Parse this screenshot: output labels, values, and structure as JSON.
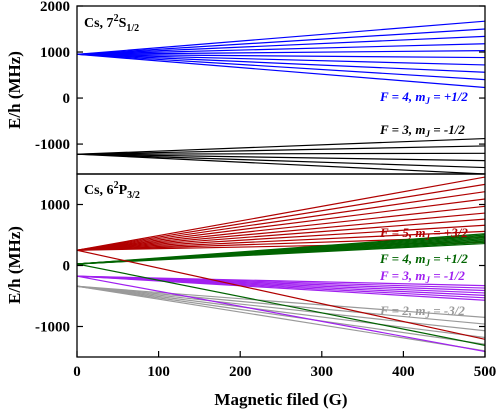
{
  "chart_data": [
    {
      "type": "line",
      "panel": "top",
      "title_parts": [
        "Cs, 7",
        "2",
        "S",
        "1/2"
      ],
      "ylabel": "E/h (MHz)",
      "xlim": [
        0,
        500
      ],
      "ylim": [
        -1650,
        2000
      ],
      "yticks": [
        2000,
        1000,
        0,
        -1000
      ],
      "grid": false,
      "series": [
        {
          "label_parts": [
            "F = 4, ",
            "m",
            "J",
            " = +1/2"
          ],
          "color": "#0000ff",
          "x": [
            0,
            500
          ],
          "start": 950,
          "end": [
            1670,
            1500,
            1340,
            1180,
            1030,
            880,
            720,
            560,
            400,
            230
          ]
        },
        {
          "label_parts": [
            "F = 3, ",
            "m",
            "J",
            " = -1/2"
          ],
          "color": "#000000",
          "x": [
            0,
            500
          ],
          "start": -1220,
          "end": [
            -880,
            -1040,
            -1200,
            -1360,
            -1510,
            -1650
          ]
        }
      ]
    },
    {
      "type": "line",
      "panel": "bottom",
      "title_parts": [
        "Cs, 6",
        "2",
        "P",
        "3/2"
      ],
      "ylabel": "E/h (MHz)",
      "xlabel": "Magnetic filed (G)",
      "xlim": [
        0,
        500
      ],
      "ylim": [
        -1500,
        1500
      ],
      "xticks": [
        0,
        100,
        200,
        300,
        400,
        500
      ],
      "yticks": [
        1000,
        0,
        -1000
      ],
      "grid": false,
      "series": [
        {
          "label_parts": [
            "F = 5, ",
            "m",
            "J",
            " = +3/2"
          ],
          "color": "#b00000",
          "x": [
            0,
            500
          ],
          "start": 250,
          "end": [
            1450,
            1330,
            1210,
            1090,
            970,
            860,
            760,
            660,
            560,
            470,
            380
          ]
        },
        {
          "label_parts": [
            "F = 4, ",
            "m",
            "J",
            " = +1/2"
          ],
          "color": "#006400",
          "x": [
            0,
            500
          ],
          "start": 25,
          "end": [
            520,
            500,
            480,
            460,
            440,
            420,
            400,
            380,
            360
          ]
        },
        {
          "label_parts": [
            "F = 3, ",
            "m",
            "J",
            " = -1/2"
          ],
          "color": "#a020f0",
          "x": [
            0,
            500
          ],
          "start": -175,
          "end": [
            -330,
            -370,
            -410,
            -450,
            -490,
            -530,
            -570
          ]
        },
        {
          "label_parts": [
            "F = 2, ",
            "m",
            "J",
            " = -3/2"
          ],
          "color": "#9a9a9a",
          "x": [
            0,
            500
          ],
          "start": -340,
          "end": [
            -850,
            -960,
            -1070,
            -1180,
            -1290,
            -1400
          ]
        }
      ],
      "crossing_lines": [
        {
          "color": "#b00000",
          "x": [
            0,
            500
          ],
          "y": [
            250,
            -1210
          ]
        },
        {
          "color": "#006400",
          "x": [
            0,
            500
          ],
          "y": [
            25,
            -1310
          ]
        },
        {
          "color": "#a020f0",
          "x": [
            0,
            500
          ],
          "y": [
            -175,
            -1410
          ]
        }
      ]
    }
  ]
}
